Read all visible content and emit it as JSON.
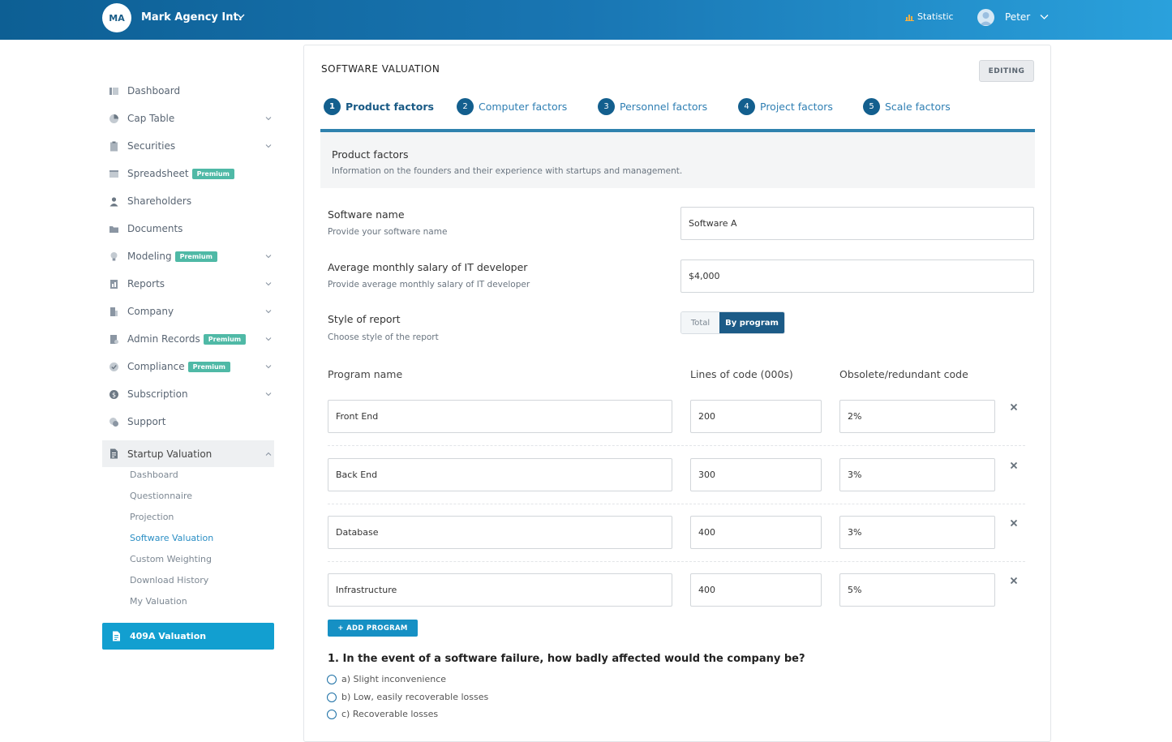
{
  "header": {
    "org_initials": "MA",
    "org_name": "Mark Agency Int.",
    "statistic_label": "Statistic",
    "user_name": "Peter"
  },
  "sidebar": {
    "items": [
      {
        "label": "Dashboard",
        "icon": "dashboard-icon",
        "badge": "",
        "chevron": false
      },
      {
        "label": "Cap Table",
        "icon": "pie-chart-icon",
        "badge": "",
        "chevron": true
      },
      {
        "label": "Securities",
        "icon": "clipboard-icon",
        "badge": "",
        "chevron": true
      },
      {
        "label": "Spreadsheet",
        "icon": "table-icon",
        "badge": "Premium",
        "chevron": false
      },
      {
        "label": "Shareholders",
        "icon": "person-icon",
        "badge": "",
        "chevron": false
      },
      {
        "label": "Documents",
        "icon": "folder-icon",
        "badge": "",
        "chevron": false
      },
      {
        "label": "Modeling",
        "icon": "lightbulb-icon",
        "badge": "Premium",
        "chevron": true
      },
      {
        "label": "Reports",
        "icon": "report-icon",
        "badge": "",
        "chevron": true
      },
      {
        "label": "Company",
        "icon": "building-icon",
        "badge": "",
        "chevron": true
      },
      {
        "label": "Admin Records",
        "icon": "records-icon",
        "badge": "Premium",
        "chevron": true
      },
      {
        "label": "Compliance",
        "icon": "check-shield-icon",
        "badge": "Premium",
        "chevron": true
      },
      {
        "label": "Subscription",
        "icon": "dollar-icon",
        "badge": "",
        "chevron": true
      },
      {
        "label": "Support",
        "icon": "support-icon",
        "badge": "",
        "chevron": false
      }
    ],
    "active_section": {
      "label": "Startup Valuation",
      "subitems": [
        "Dashboard",
        "Questionnaire",
        "Projection",
        "Software Valuation",
        "Custom Weighting",
        "Download History",
        "My Valuation"
      ],
      "current": "Software Valuation"
    },
    "valuation_409a": "409A Valuation"
  },
  "main": {
    "title": "SOFTWARE VALUATION",
    "edit_label": "EDITING",
    "steps": [
      {
        "num": "1",
        "label": "Product factors"
      },
      {
        "num": "2",
        "label": "Computer factors"
      },
      {
        "num": "3",
        "label": "Personnel factors"
      },
      {
        "num": "4",
        "label": "Project factors"
      },
      {
        "num": "5",
        "label": "Scale factors"
      }
    ],
    "info": {
      "title": "Product factors",
      "description": "Information on the founders and their experience with startups and management."
    },
    "fields": {
      "software_name": {
        "label": "Software name",
        "help": "Provide your software name",
        "value": "Software A"
      },
      "salary": {
        "label": "Average monthly salary of IT developer",
        "help": "Provide average monthly salary of IT developer",
        "value": "$4,000"
      },
      "report_style": {
        "label": "Style of report",
        "help": "Choose style of the report",
        "option_total": "Total",
        "option_program": "By program"
      }
    },
    "table": {
      "headers": [
        "Program name",
        "Lines of code (000s)",
        "Obsolete/redundant code"
      ],
      "rows": [
        {
          "name": "Front End",
          "loc": "200",
          "obsolete": "2%"
        },
        {
          "name": "Back End",
          "loc": "300",
          "obsolete": "3%"
        },
        {
          "name": "Database",
          "loc": "400",
          "obsolete": "3%"
        },
        {
          "name": "Infrastructure",
          "loc": "400",
          "obsolete": "5%"
        }
      ]
    },
    "add_program_label": "+ ADD PROGRAM",
    "question": {
      "text": "1. In the event of a software failure, how badly affected would the company be?",
      "options": [
        "a) Slight inconvenience",
        "b) Low, easily recoverable losses",
        "c) Recoverable losses"
      ]
    }
  },
  "colors": {
    "header_start": "#0d5f94",
    "header_end": "#2aa1dc",
    "accent": "#135f8e",
    "premium_badge": "#4fb9a6",
    "button_409a": "#129fd0"
  }
}
